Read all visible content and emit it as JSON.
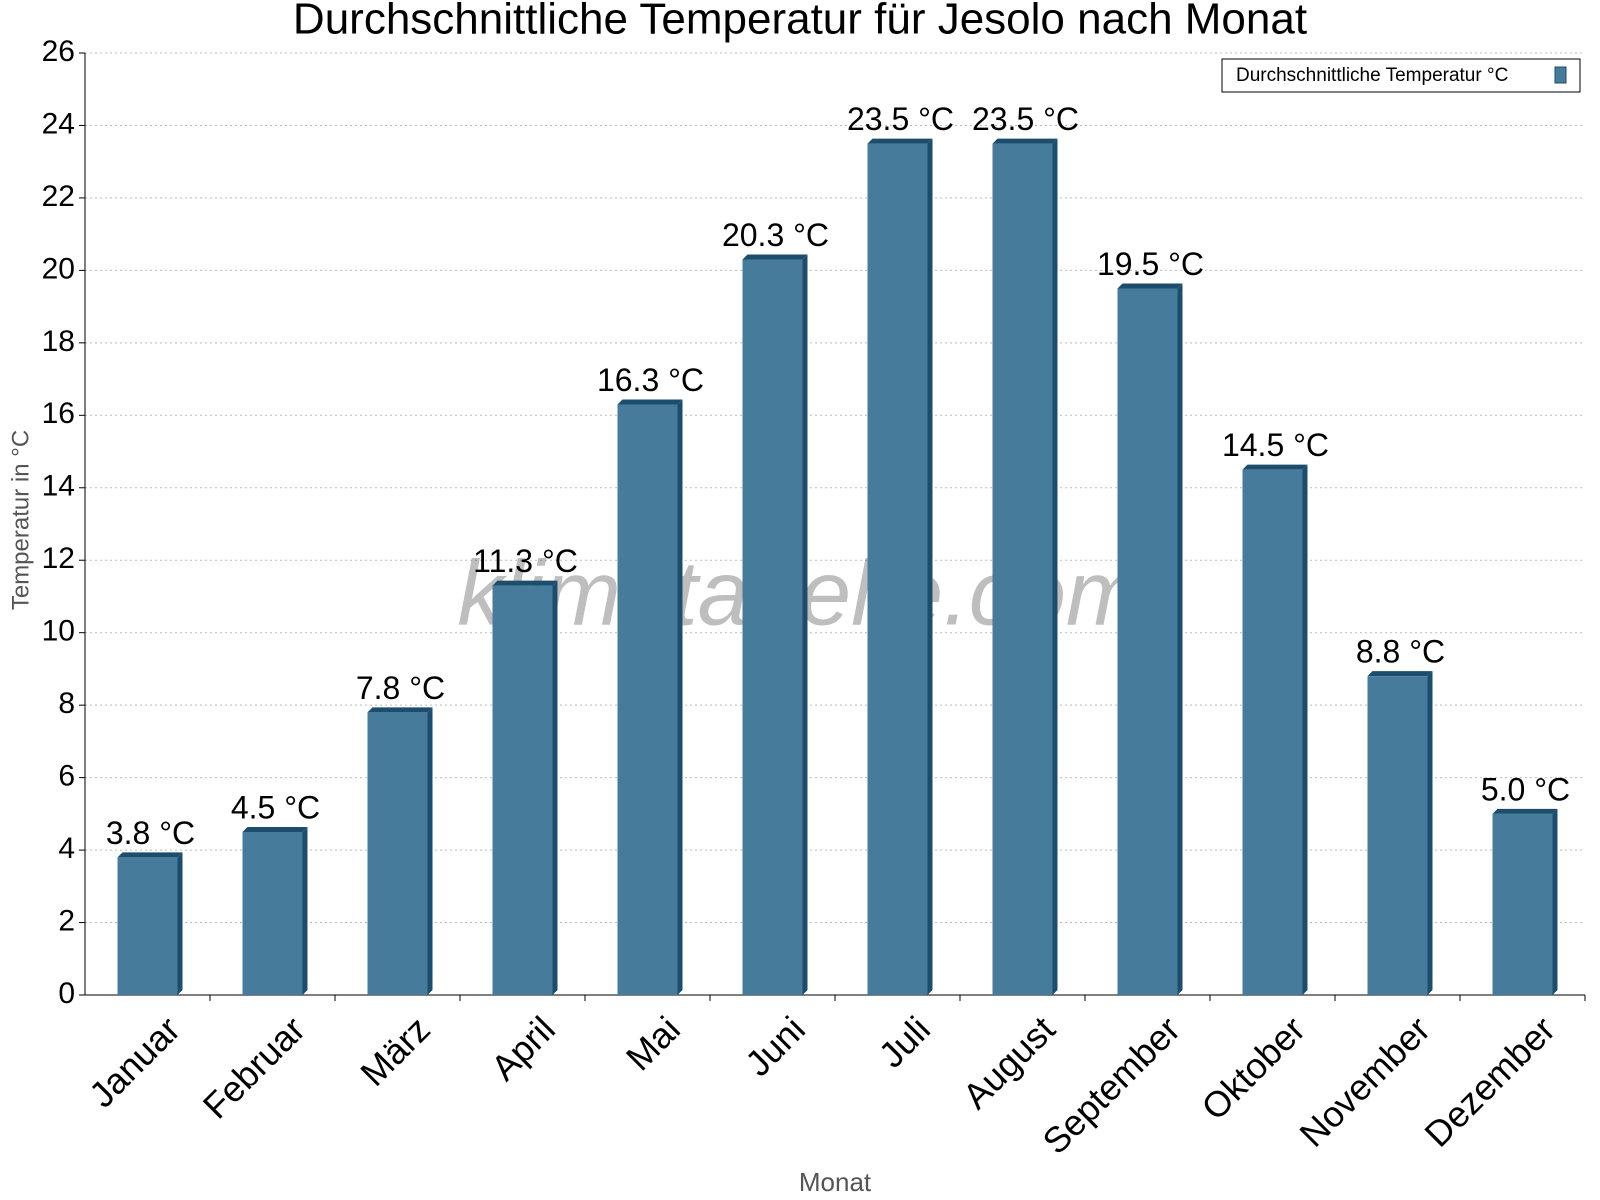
{
  "chart_data": {
    "type": "bar",
    "title": "Durchschnittliche Temperatur für Jesolo nach Monat",
    "x_label": "Monat",
    "y_label": "Temperatur in °C",
    "watermark": "klimatabelle.com",
    "categories": [
      "Januar",
      "Februar",
      "März",
      "April",
      "Mai",
      "Juni",
      "Juli",
      "August",
      "September",
      "Oktober",
      "November",
      "Dezember"
    ],
    "series": [
      {
        "name": "Durchschnittliche Temperatur °C",
        "color": "#467b9c",
        "values": [
          3.8,
          4.5,
          7.8,
          11.3,
          16.3,
          20.3,
          23.5,
          23.5,
          19.5,
          14.5,
          8.8,
          5.0
        ],
        "value_labels": [
          "3.8 °C",
          "4.5 °C",
          "7.8 °C",
          "11.3 °C",
          "16.3 °C",
          "20.3 °C",
          "23.5 °C",
          "23.5 °C",
          "19.5 °C",
          "14.5 °C",
          "8.8 °C",
          "5.0 °C"
        ]
      }
    ],
    "ylim": [
      0,
      26
    ],
    "yticks": [
      0,
      2,
      4,
      6,
      8,
      10,
      12,
      14,
      16,
      18,
      20,
      22,
      24,
      26
    ],
    "grid": true,
    "legend": "top-right"
  }
}
